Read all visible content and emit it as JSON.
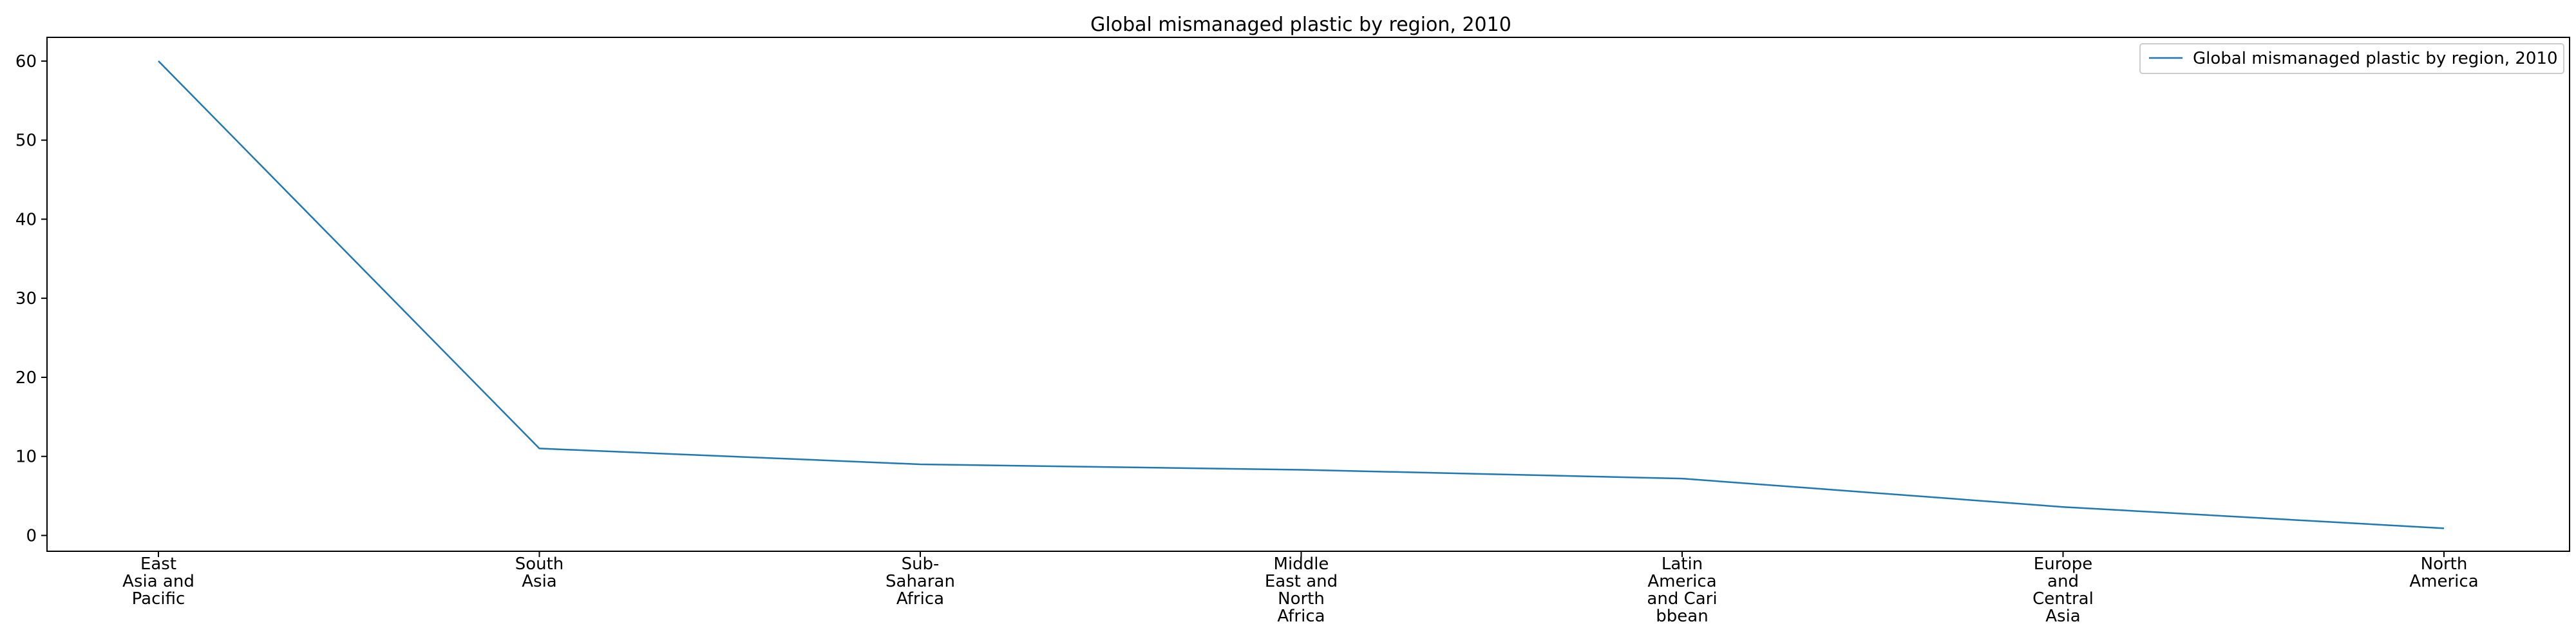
{
  "chart_data": {
    "type": "line",
    "title": "Global mismanaged plastic by region, 2010",
    "xlabel": "",
    "ylabel": "",
    "categories": [
      [
        "East",
        "Asia and",
        "Pacific"
      ],
      [
        "South",
        "Asia"
      ],
      [
        "Sub-",
        "Saharan",
        "Africa"
      ],
      [
        "Middle",
        "East and",
        "North",
        "Africa"
      ],
      [
        "Latin",
        "America",
        "and Cari",
        "bbean"
      ],
      [
        "Europe",
        "and",
        "Central",
        "Asia"
      ],
      [
        "North",
        "America"
      ]
    ],
    "series": [
      {
        "name": "Global mismanaged plastic by region, 2010",
        "values": [
          60.0,
          11.0,
          9.0,
          8.3,
          7.2,
          3.6,
          0.9
        ]
      }
    ],
    "ylim": [
      -2,
      63
    ],
    "yticks": [
      0,
      10,
      20,
      30,
      40,
      50,
      60
    ],
    "grid": false,
    "legend_position": "top-right",
    "colors": {
      "series": "#1f77b4",
      "axes": "#000000",
      "legend_border": "#cccccc"
    }
  }
}
